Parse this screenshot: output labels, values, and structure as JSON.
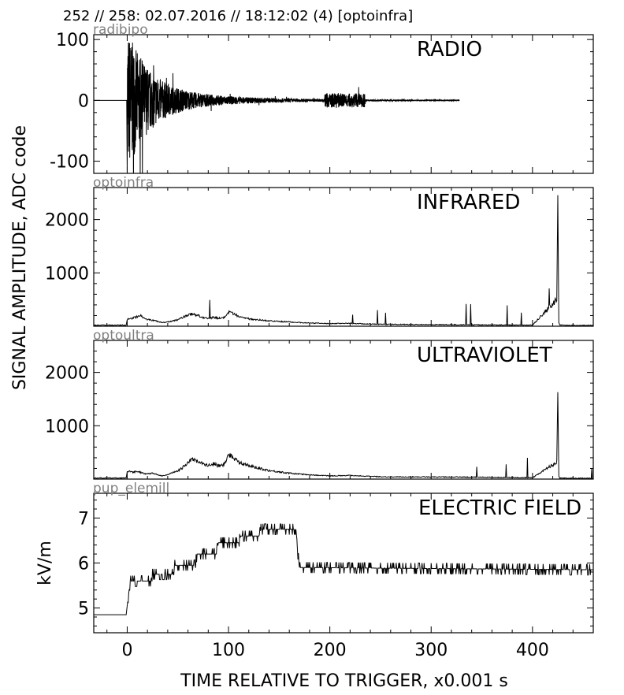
{
  "header": "252 // 258:   02.07.2016 // 18:12:02 (4)  [optoinfra]",
  "ylabel_main": "SIGNAL AMPLITUDE,  ADC code",
  "xlabel": "TIME RELATIVE TO TRIGGER,   x0.001 s",
  "colors": {
    "trace": "#000000",
    "channel_label": "#808080",
    "axes": "#000000"
  },
  "chart_data": [
    {
      "type": "line",
      "channel": "radibipo",
      "title": "RADIO",
      "ylabel": "",
      "xlim": [
        -33,
        460
      ],
      "ylim": [
        -120,
        108
      ],
      "yticks": [
        -100,
        0,
        100
      ],
      "ytick_labels": [
        "-100",
        "0",
        "100"
      ],
      "xticks": [
        0,
        100,
        200,
        300,
        400
      ],
      "show_xtick_labels": false,
      "series": [
        {
          "x": [
            0,
            10,
            20,
            35,
            50,
            70,
            100,
            150,
            200,
            250,
            275,
            300,
            328
          ],
          "y": [
            0,
            0,
            0,
            0,
            0,
            0,
            0,
            0,
            0,
            0,
            0,
            0,
            0
          ]
        }
      ]
    },
    {
      "type": "line",
      "channel": "optoinfra",
      "title": "INFRARED",
      "ylabel": "",
      "xlim": [
        -33,
        460
      ],
      "ylim": [
        0,
        2600
      ],
      "yticks": [
        1000,
        2000
      ],
      "ytick_labels": [
        "1000",
        "2000"
      ],
      "xticks": [
        0,
        100,
        200,
        300,
        400
      ],
      "show_xtick_labels": false,
      "series": [
        {
          "x": [
            -33,
            -1,
            0,
            5,
            10,
            14,
            18,
            22,
            26,
            30,
            35,
            40,
            45,
            50,
            55,
            60,
            65,
            70,
            75,
            80,
            85,
            90,
            95,
            100,
            105,
            110,
            120,
            140,
            160,
            180,
            200,
            220,
            240,
            260,
            300,
            350,
            400,
            424,
            425,
            426,
            427,
            440,
            460
          ],
          "y": [
            20,
            20,
            130,
            150,
            180,
            200,
            140,
            120,
            110,
            90,
            70,
            80,
            100,
            120,
            170,
            210,
            230,
            200,
            160,
            140,
            170,
            150,
            150,
            260,
            230,
            180,
            140,
            100,
            80,
            60,
            50,
            55,
            40,
            35,
            30,
            25,
            20,
            500,
            2480,
            60,
            20,
            15,
            15
          ]
        }
      ]
    },
    {
      "type": "line",
      "channel": "optoultra",
      "title": "ULTRAVIOLET",
      "ylabel": "",
      "xlim": [
        -33,
        460
      ],
      "ylim": [
        0,
        2600
      ],
      "yticks": [
        1000,
        2000
      ],
      "ytick_labels": [
        "1000",
        "2000"
      ],
      "xticks": [
        0,
        100,
        200,
        300,
        400
      ],
      "show_xtick_labels": false,
      "series": [
        {
          "x": [
            -33,
            -1,
            0,
            5,
            10,
            14,
            18,
            22,
            26,
            30,
            35,
            40,
            45,
            50,
            55,
            60,
            65,
            70,
            75,
            80,
            85,
            90,
            95,
            100,
            105,
            110,
            120,
            140,
            160,
            180,
            200,
            220,
            240,
            260,
            300,
            350,
            400,
            424,
            425,
            426,
            427,
            440,
            460
          ],
          "y": [
            20,
            20,
            150,
            130,
            140,
            120,
            100,
            100,
            110,
            80,
            60,
            80,
            120,
            150,
            220,
            320,
            370,
            340,
            280,
            250,
            290,
            250,
            260,
            460,
            400,
            330,
            250,
            160,
            110,
            80,
            60,
            70,
            50,
            40,
            40,
            35,
            25,
            320,
            1480,
            60,
            20,
            15,
            15
          ]
        }
      ]
    },
    {
      "type": "line",
      "channel": "pup_elemill",
      "title": "ELECTRIC FIELD",
      "ylabel": "kV/m",
      "xlim": [
        -33,
        460
      ],
      "ylim": [
        4.45,
        7.55
      ],
      "yticks": [
        5,
        6,
        7
      ],
      "ytick_labels": [
        "5",
        "6",
        "7"
      ],
      "xticks": [
        0,
        100,
        200,
        300,
        400
      ],
      "show_xtick_labels": true,
      "xtick_labels": [
        "0",
        "100",
        "200",
        "300",
        "400"
      ],
      "series": [
        {
          "x": [
            -33,
            -1,
            0,
            3,
            23,
            25,
            45,
            47,
            67,
            69,
            88,
            90,
            110,
            112,
            130,
            132,
            167,
            168,
            170,
            460
          ],
          "y": [
            4.85,
            4.85,
            5.05,
            5.6,
            5.6,
            5.75,
            5.75,
            5.95,
            5.95,
            6.2,
            6.2,
            6.45,
            6.45,
            6.6,
            6.6,
            6.75,
            6.75,
            6.3,
            5.9,
            5.85
          ]
        }
      ]
    }
  ]
}
